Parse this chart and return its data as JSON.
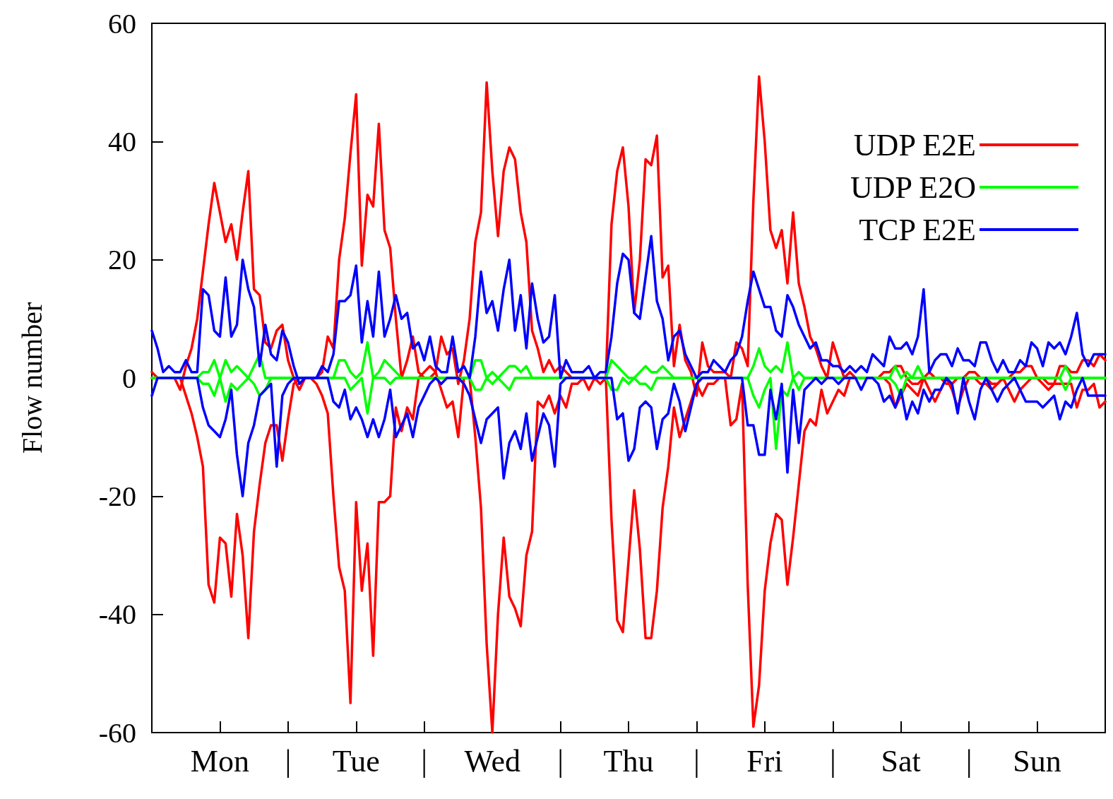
{
  "chart_data": {
    "type": "line",
    "ylabel": "Flow number",
    "ylim": [
      -60,
      60
    ],
    "yticks": [
      -60,
      -40,
      -20,
      0,
      20,
      40,
      60
    ],
    "categories": [
      null,
      null,
      null,
      null,
      null,
      null,
      null,
      null,
      null,
      null,
      null,
      null,
      "Mon",
      null,
      null,
      null,
      null,
      null,
      null,
      null,
      null,
      null,
      null,
      null,
      "|",
      null,
      null,
      null,
      null,
      null,
      null,
      null,
      null,
      null,
      null,
      null,
      "Tue",
      null,
      null,
      null,
      null,
      null,
      null,
      null,
      null,
      null,
      null,
      null,
      "|",
      null,
      null,
      null,
      null,
      null,
      null,
      null,
      null,
      null,
      null,
      null,
      "Wed",
      null,
      null,
      null,
      null,
      null,
      null,
      null,
      null,
      null,
      null,
      null,
      "|",
      null,
      null,
      null,
      null,
      null,
      null,
      null,
      null,
      null,
      null,
      null,
      "Thu",
      null,
      null,
      null,
      null,
      null,
      null,
      null,
      null,
      null,
      null,
      null,
      "|",
      null,
      null,
      null,
      null,
      null,
      null,
      null,
      null,
      null,
      null,
      null,
      "Fri",
      null,
      null,
      null,
      null,
      null,
      null,
      null,
      null,
      null,
      null,
      null,
      "|",
      null,
      null,
      null,
      null,
      null,
      null,
      null,
      null,
      null,
      null,
      null,
      "Sat",
      null,
      null,
      null,
      null,
      null,
      null,
      null,
      null,
      null,
      null,
      null,
      "|",
      null,
      null,
      null,
      null,
      null,
      null,
      null,
      null,
      null,
      null,
      null,
      "Sun",
      null,
      null,
      null,
      null,
      null,
      null,
      null,
      null,
      null,
      null,
      null,
      null
    ],
    "grid": false,
    "legend": "top right",
    "marker": "none",
    "line_style": "solid",
    "series": [
      {
        "name": "UDP E2E",
        "color": "#ff0000",
        "values": [
          1,
          0,
          0,
          0,
          0,
          -2,
          2,
          5,
          10,
          18,
          26,
          33,
          28,
          23,
          26,
          20,
          28,
          35,
          15,
          14,
          6,
          5,
          8,
          9,
          3,
          0,
          -2,
          0,
          0,
          0,
          1,
          7,
          5,
          20,
          27,
          38,
          48,
          19,
          31,
          29,
          43,
          25,
          22,
          10,
          0,
          3,
          7,
          1,
          0,
          0,
          1,
          7,
          4,
          5,
          -1,
          3,
          10,
          23,
          28,
          50,
          35,
          24,
          35,
          39,
          37,
          28,
          23,
          8,
          5,
          1,
          3,
          1,
          2,
          1,
          0,
          0,
          0,
          0,
          0,
          0,
          0,
          26,
          35,
          39,
          29,
          11,
          20,
          37,
          36,
          41,
          17,
          19,
          2,
          9,
          3,
          1,
          -3,
          6,
          2,
          1,
          1,
          1,
          0,
          6,
          5,
          2,
          30,
          51,
          40,
          25,
          22,
          25,
          16,
          28,
          16,
          12,
          7,
          5,
          2,
          0,
          6,
          3,
          0,
          1,
          0,
          0,
          0,
          0,
          0,
          1,
          1,
          2,
          2,
          0,
          -1,
          -1,
          0,
          1,
          0,
          0,
          -1,
          -1,
          0,
          0,
          1,
          1,
          0,
          0,
          -1,
          -1,
          0,
          0,
          1,
          1,
          2,
          2,
          0,
          0,
          -1,
          -1,
          2,
          2,
          1,
          1,
          3,
          3,
          2,
          4,
          3
        ]
      },
      {
        "color": "#ff0000",
        "values": [
          0,
          0,
          0,
          0,
          0,
          0,
          -3,
          -6,
          -10,
          -15,
          -35,
          -38,
          -27,
          -28,
          -37,
          -23,
          -30,
          -44,
          -26,
          -18,
          -11,
          -8,
          -8,
          -14,
          -7,
          -1,
          0,
          0,
          0,
          -1,
          -3,
          -6,
          -20,
          -32,
          -36,
          -55,
          -21,
          -36,
          -28,
          -47,
          -21,
          -21,
          -20,
          -5,
          -9,
          -5,
          -7,
          0,
          1,
          2,
          1,
          -2,
          -5,
          -4,
          -10,
          0,
          0,
          -10,
          -22,
          -45,
          -60,
          -40,
          -27,
          -37,
          -39,
          -42,
          -30,
          -26,
          -4,
          -5,
          -3,
          -6,
          -3,
          -5,
          -1,
          -1,
          0,
          -2,
          0,
          -1,
          0,
          -24,
          -41,
          -43,
          -31,
          -19,
          -29,
          -44,
          -44,
          -36,
          -22,
          -15,
          -5,
          -10,
          -7,
          -4,
          -1,
          -3,
          -1,
          -1,
          0,
          0,
          -8,
          -7,
          -1,
          -35,
          -59,
          -52,
          -36,
          -28,
          -23,
          -24,
          -35,
          -27,
          -18,
          -9,
          -7,
          -8,
          -2,
          -6,
          -4,
          -2,
          -3,
          0,
          0,
          0,
          0,
          0,
          0,
          0,
          -1,
          -5,
          -3,
          -1,
          -2,
          -3,
          0,
          -2,
          -4,
          -2,
          0,
          -2,
          -5,
          -2,
          0,
          0,
          -1,
          -1,
          -2,
          -1,
          0,
          -2,
          -4,
          -2,
          -1,
          0,
          0,
          -1,
          -2,
          -1,
          -1,
          -1,
          -1,
          -5,
          -2,
          -2,
          -1,
          -5,
          -4
        ]
      },
      {
        "name": "UDP E2O",
        "color": "#00ff00",
        "values": [
          0,
          0,
          0,
          0,
          0,
          0,
          0,
          0,
          0,
          1,
          1,
          3,
          0,
          3,
          1,
          2,
          1,
          0,
          2,
          4,
          0,
          0,
          0,
          0,
          0,
          0,
          0,
          0,
          0,
          0,
          0,
          0,
          0,
          3,
          3,
          1,
          0,
          1,
          6,
          0,
          1,
          3,
          2,
          1,
          0,
          0,
          0,
          0,
          0,
          0,
          0,
          0,
          0,
          0,
          0,
          0,
          0,
          3,
          3,
          0,
          1,
          0,
          1,
          2,
          2,
          1,
          2,
          0,
          0,
          0,
          0,
          0,
          0,
          0,
          0,
          0,
          0,
          0,
          0,
          0,
          0,
          3,
          2,
          1,
          0,
          0,
          1,
          2,
          1,
          1,
          2,
          1,
          0,
          0,
          0,
          0,
          0,
          0,
          0,
          0,
          0,
          0,
          0,
          0,
          0,
          0,
          2,
          5,
          2,
          1,
          2,
          1,
          6,
          0,
          1,
          0,
          0,
          0,
          0,
          0,
          0,
          0,
          0,
          0,
          0,
          0,
          0,
          0,
          0,
          0,
          0,
          2,
          0,
          1,
          0,
          2,
          0,
          0,
          0,
          0,
          0,
          0,
          0,
          0,
          0,
          0,
          0,
          0,
          0,
          0,
          0,
          0,
          0,
          0,
          0,
          0,
          0,
          0,
          0,
          0,
          0,
          2,
          0,
          0,
          0,
          0,
          0,
          0,
          0
        ]
      },
      {
        "color": "#00ff00",
        "values": [
          0,
          0,
          0,
          0,
          0,
          0,
          0,
          0,
          0,
          -1,
          -1,
          -3,
          0,
          -4,
          -1,
          -2,
          -1,
          0,
          -1,
          -3,
          -2,
          0,
          0,
          0,
          0,
          0,
          0,
          0,
          0,
          0,
          0,
          0,
          0,
          0,
          0,
          -2,
          -1,
          0,
          -6,
          0,
          0,
          0,
          -1,
          0,
          0,
          0,
          0,
          0,
          0,
          0,
          0,
          0,
          0,
          0,
          0,
          0,
          0,
          -2,
          -2,
          0,
          -1,
          0,
          -1,
          -2,
          0,
          0,
          0,
          0,
          0,
          0,
          0,
          0,
          0,
          0,
          0,
          0,
          0,
          0,
          0,
          0,
          0,
          -2,
          -2,
          0,
          -1,
          0,
          -1,
          -1,
          -2,
          0,
          0,
          0,
          0,
          0,
          0,
          0,
          0,
          0,
          0,
          0,
          0,
          0,
          0,
          0,
          0,
          0,
          -3,
          -5,
          -2,
          0,
          -12,
          -2,
          -3,
          0,
          -2,
          0,
          0,
          0,
          0,
          0,
          0,
          0,
          0,
          0,
          0,
          0,
          0,
          0,
          0,
          0,
          0,
          -1,
          -3,
          0,
          0,
          0,
          0,
          0,
          0,
          0,
          0,
          0,
          0,
          0,
          0,
          0,
          0,
          0,
          0,
          0,
          0,
          0,
          0,
          0,
          0,
          0,
          0,
          0,
          0,
          0,
          0,
          -2,
          0,
          0,
          0,
          0,
          0,
          0,
          0
        ]
      },
      {
        "name": "TCP E2E",
        "color": "#0000ff",
        "values": [
          8,
          5,
          1,
          2,
          1,
          1,
          3,
          1,
          1,
          15,
          14,
          8,
          7,
          17,
          7,
          9,
          20,
          15,
          12,
          2,
          9,
          4,
          3,
          8,
          6,
          2,
          -1,
          0,
          0,
          0,
          2,
          1,
          4,
          13,
          13,
          14,
          19,
          6,
          13,
          7,
          18,
          7,
          10,
          14,
          10,
          11,
          5,
          6,
          3,
          7,
          2,
          1,
          1,
          7,
          1,
          2,
          0,
          7,
          18,
          11,
          13,
          8,
          15,
          20,
          8,
          14,
          5,
          16,
          10,
          6,
          7,
          14,
          0,
          3,
          1,
          1,
          1,
          2,
          0,
          1,
          1,
          7,
          16,
          21,
          20,
          11,
          10,
          17,
          24,
          13,
          10,
          3,
          7,
          8,
          4,
          2,
          0,
          1,
          1,
          3,
          2,
          1,
          3,
          4,
          7,
          13,
          18,
          15,
          12,
          12,
          8,
          7,
          14,
          12,
          9,
          7,
          5,
          6,
          3,
          3,
          2,
          2,
          1,
          2,
          1,
          2,
          1,
          4,
          3,
          2,
          7,
          5,
          5,
          6,
          4,
          7,
          15,
          1,
          3,
          4,
          4,
          2,
          5,
          3,
          3,
          2,
          6,
          6,
          3,
          1,
          3,
          1,
          1,
          3,
          2,
          6,
          5,
          2,
          6,
          5,
          6,
          4,
          7,
          11,
          4,
          2,
          4,
          4,
          4
        ]
      },
      {
        "color": "#0000ff",
        "values": [
          -3,
          0,
          0,
          0,
          0,
          0,
          0,
          0,
          0,
          -5,
          -8,
          -9,
          -10,
          -7,
          -2,
          -13,
          -20,
          -11,
          -8,
          -3,
          -2,
          -1,
          -15,
          -3,
          -1,
          0,
          0,
          0,
          0,
          0,
          0,
          0,
          -4,
          -5,
          -2,
          -7,
          -5,
          -7,
          -10,
          -7,
          -10,
          -7,
          -2,
          -10,
          -8,
          -6,
          -10,
          -5,
          -3,
          -1,
          0,
          -1,
          0,
          0,
          0,
          -1,
          -3,
          -7,
          -11,
          -7,
          -6,
          -5,
          -17,
          -11,
          -9,
          -12,
          -6,
          -14,
          -10,
          -6,
          -8,
          -15,
          -1,
          0,
          0,
          0,
          0,
          0,
          0,
          0,
          0,
          0,
          -7,
          -6,
          -14,
          -12,
          -5,
          -4,
          -5,
          -12,
          -7,
          -6,
          -1,
          -4,
          -9,
          -5,
          -1,
          0,
          0,
          0,
          0,
          0,
          0,
          0,
          0,
          -8,
          -8,
          -13,
          -13,
          -2,
          -7,
          -1,
          -16,
          -2,
          -11,
          -2,
          -1,
          0,
          -1,
          0,
          0,
          -1,
          0,
          0,
          0,
          -2,
          0,
          0,
          -1,
          -4,
          -3,
          -5,
          -2,
          -7,
          -4,
          -6,
          -2,
          -4,
          -2,
          -2,
          0,
          -1,
          -6,
          0,
          -4,
          -7,
          -2,
          0,
          -2,
          -4,
          -2,
          -1,
          0,
          -2,
          -4,
          -4,
          -4,
          -5,
          -4,
          -3,
          -7,
          -4,
          -5,
          -2,
          0,
          -3,
          -3,
          -3,
          -3
        ]
      }
    ]
  }
}
